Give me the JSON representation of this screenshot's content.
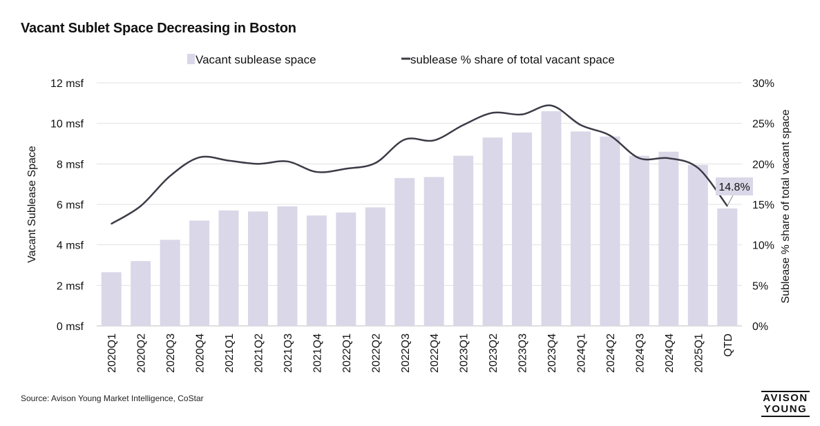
{
  "chart_data": {
    "type": "bar+line",
    "title": "Vacant Sublet Space Decreasing in Boston",
    "categories": [
      "2020Q1",
      "2020Q2",
      "2020Q3",
      "2020Q4",
      "2021Q1",
      "2021Q2",
      "2021Q3",
      "2021Q4",
      "2022Q1",
      "2022Q2",
      "2022Q3",
      "2022Q4",
      "2023Q1",
      "2023Q2",
      "2023Q3",
      "2023Q4",
      "2024Q1",
      "2024Q2",
      "2024Q3",
      "2024Q4",
      "2025Q1",
      "QTD"
    ],
    "series": [
      {
        "name": "Vacant sublease space",
        "kind": "bar",
        "axis": "left",
        "color": "#dad7e8",
        "values": [
          2.65,
          3.2,
          4.25,
          5.2,
          5.7,
          5.65,
          5.9,
          5.45,
          5.6,
          5.85,
          7.3,
          7.35,
          8.4,
          9.3,
          9.55,
          10.6,
          9.6,
          9.35,
          8.4,
          8.6,
          7.95,
          5.8
        ]
      },
      {
        "name": "sublease % share of total vacant space",
        "kind": "line",
        "axis": "right",
        "color": "#3b3b46",
        "values": [
          12.6,
          14.8,
          18.5,
          20.8,
          20.4,
          20.0,
          20.3,
          19.0,
          19.4,
          20.1,
          23.0,
          22.9,
          24.8,
          26.3,
          26.1,
          27.2,
          24.8,
          23.5,
          20.7,
          20.7,
          19.5,
          14.8
        ]
      }
    ],
    "y_left": {
      "label": "Vacant Sublease Space",
      "lim": [
        0,
        12
      ],
      "ticks": [
        0,
        2,
        4,
        6,
        8,
        10,
        12
      ],
      "tick_labels": [
        "0 msf",
        "2 msf",
        "4 msf",
        "6 msf",
        "8 msf",
        "10 msf",
        "12 msf"
      ]
    },
    "y_right": {
      "label": "Sublease % share of total vacant space",
      "lim": [
        0,
        30
      ],
      "ticks": [
        0,
        5,
        10,
        15,
        20,
        25,
        30
      ],
      "tick_labels": [
        "0%",
        "5%",
        "10%",
        "15%",
        "20%",
        "25%",
        "30%"
      ]
    },
    "annotation": {
      "category": "QTD",
      "series": "sublease % share of total vacant space",
      "text": "14.8%"
    },
    "legend": {
      "placement": "top",
      "entries": [
        "Vacant sublease space",
        "sublease % share of total vacant space"
      ]
    },
    "grid": true
  },
  "footer": {
    "source": "Source: Avison Young Market Intelligence, CoStar",
    "logo_line1": "AVISON",
    "logo_line2": "YOUNG"
  }
}
